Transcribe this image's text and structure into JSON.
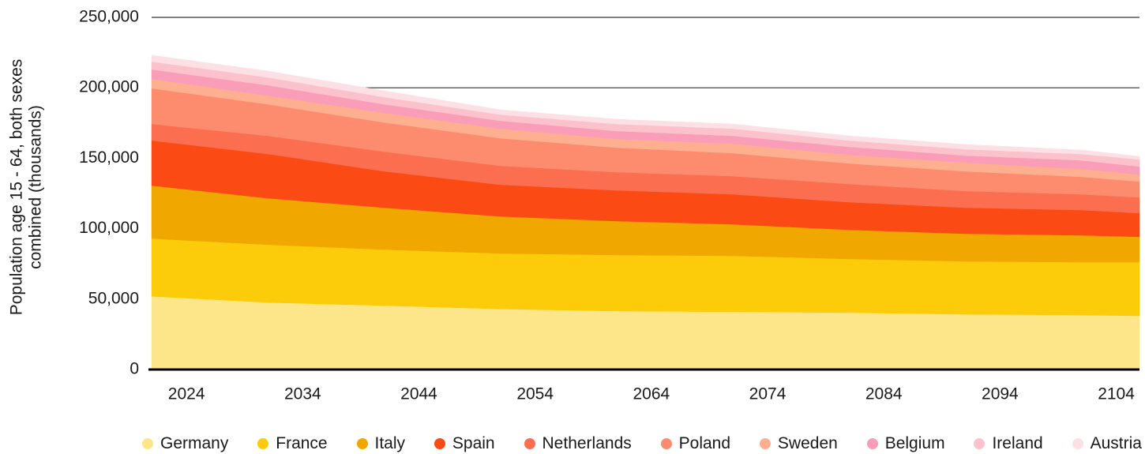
{
  "chart_data": {
    "type": "stacked_area",
    "y_label": [
      "Population age 15 - 64, both sexes",
      "combined (thousands)"
    ],
    "x": [
      2021,
      2031,
      2041,
      2051,
      2061,
      2071,
      2081,
      2091,
      2101,
      2106
    ],
    "xlim": [
      2021,
      2106
    ],
    "xticks": [
      2024,
      2034,
      2044,
      2054,
      2064,
      2074,
      2084,
      2094,
      2104
    ],
    "ylim": [
      0,
      250000
    ],
    "yticks": [
      0,
      {
        "value": 50000,
        "label": "50,000"
      },
      {
        "value": 100000,
        "label": "100,000"
      },
      {
        "value": 150000,
        "label": "150,000"
      },
      {
        "value": 200000,
        "label": "200,000"
      },
      {
        "value": 250000,
        "label": "250,000"
      }
    ],
    "grid": true,
    "legend": "bottom",
    "series": [
      {
        "name": "Germany",
        "color": "#fde68a",
        "values": [
          52000,
          47600,
          45400,
          43000,
          41500,
          41000,
          40400,
          39200,
          38700,
          38100
        ]
      },
      {
        "name": "France",
        "color": "#fccc0a",
        "values": [
          41000,
          41000,
          39800,
          39400,
          39800,
          39700,
          38100,
          37600,
          37500,
          38100
        ]
      },
      {
        "name": "Italy",
        "color": "#f0a800",
        "values": [
          37600,
          33000,
          29700,
          26300,
          24100,
          22400,
          20700,
          19600,
          19100,
          18000
        ]
      },
      {
        "name": "Spain",
        "color": "#fc4a14",
        "values": [
          32000,
          31400,
          25800,
          22500,
          21800,
          21300,
          19600,
          18500,
          17900,
          16800
        ]
      },
      {
        "name": "Netherlands",
        "color": "#fc6e50",
        "values": [
          11700,
          12900,
          14000,
          13400,
          12900,
          12900,
          12900,
          11800,
          11200,
          11200
        ]
      },
      {
        "name": "Poland",
        "color": "#fd8c6e",
        "values": [
          25300,
          22400,
          20700,
          19600,
          17400,
          16300,
          14600,
          14000,
          12400,
          11200
        ]
      },
      {
        "name": "Sweden",
        "color": "#fdaf90",
        "values": [
          6700,
          6200,
          6800,
          6800,
          6200,
          6700,
          6200,
          6200,
          5600,
          5100
        ]
      },
      {
        "name": "Belgium",
        "color": "#f99db8",
        "values": [
          6700,
          7300,
          6100,
          5600,
          5600,
          5600,
          5600,
          5000,
          6100,
          5600
        ]
      },
      {
        "name": "Ireland",
        "color": "#fcc2cc",
        "values": [
          5600,
          5600,
          5100,
          4400,
          5000,
          5100,
          4500,
          4500,
          4500,
          5000
        ]
      },
      {
        "name": "Austria",
        "color": "#fde0e4",
        "values": [
          4500,
          4500,
          4500,
          3400,
          3400,
          3300,
          3300,
          3400,
          2800,
          2200
        ]
      }
    ]
  }
}
